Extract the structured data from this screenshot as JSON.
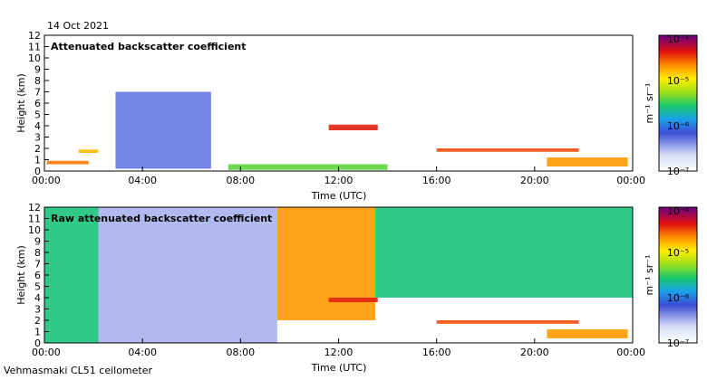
{
  "date_label": "14 Oct 2021",
  "footer_label": "Vehmasmaki CL51 ceilometer",
  "chart_data": [
    {
      "type": "heatmap",
      "title": "Attenuated backscatter coefficient",
      "xlabel": "Time (UTC)",
      "ylabel": "Height (km)",
      "xlim": [
        0,
        24
      ],
      "ylim": [
        0,
        12
      ],
      "x_ticks": [
        "00:00",
        "04:00",
        "08:00",
        "12:00",
        "16:00",
        "20:00",
        "00:00"
      ],
      "y_ticks": [
        "0",
        "1",
        "2",
        "3",
        "4",
        "5",
        "6",
        "7",
        "8",
        "9",
        "10",
        "11",
        "12"
      ],
      "colorbar": {
        "label": "m⁻¹ sr⁻¹",
        "ticks": [
          "10⁻⁴",
          "10⁻⁵",
          "10⁻⁶",
          "10⁻⁷"
        ],
        "log_range": [
          -7,
          -4
        ]
      },
      "features": [
        {
          "name": "early-cloud-layer",
          "t_start": 0.1,
          "t_end": 1.8,
          "h_bottom": 0.6,
          "h_top": 0.9,
          "log_value": -4.6
        },
        {
          "name": "low-cloud-1",
          "t_start": 1.4,
          "t_end": 2.2,
          "h_bottom": 1.6,
          "h_top": 1.9,
          "log_value": -4.8
        },
        {
          "name": "precip-column",
          "t_start": 2.9,
          "t_end": 6.8,
          "h_bottom": 0.2,
          "h_top": 7.0,
          "log_value": -6.3
        },
        {
          "name": "mid-cloud",
          "t_start": 11.6,
          "t_end": 13.6,
          "h_bottom": 3.6,
          "h_top": 4.1,
          "log_value": -4.4
        },
        {
          "name": "boundary-layer-top",
          "t_start": 7.5,
          "t_end": 14.0,
          "h_bottom": 0.1,
          "h_top": 0.6,
          "log_value": -5.4
        },
        {
          "name": "stratus-deck",
          "t_start": 16.0,
          "t_end": 21.8,
          "h_bottom": 1.7,
          "h_top": 2.0,
          "log_value": -4.5
        },
        {
          "name": "descending-layer",
          "t_start": 20.5,
          "t_end": 23.8,
          "h_bottom": 0.4,
          "h_top": 1.2,
          "log_value": -4.7
        }
      ]
    },
    {
      "type": "heatmap",
      "title": "Raw attenuated backscatter coefficient",
      "xlabel": "Time (UTC)",
      "ylabel": "Height (km)",
      "xlim": [
        0,
        24
      ],
      "ylim": [
        0,
        12
      ],
      "x_ticks": [
        "00:00",
        "04:00",
        "08:00",
        "12:00",
        "16:00",
        "20:00",
        "00:00"
      ],
      "y_ticks": [
        "0",
        "1",
        "2",
        "3",
        "4",
        "5",
        "6",
        "7",
        "8",
        "9",
        "10",
        "11",
        "12"
      ],
      "colorbar": {
        "label": "m⁻¹ sr⁻¹",
        "ticks": [
          "10⁻⁴",
          "10⁻⁵",
          "10⁻⁶",
          "10⁻⁷"
        ],
        "log_range": [
          -7,
          -4
        ]
      },
      "features": [
        {
          "name": "noise-early",
          "t_start": 0.0,
          "t_end": 2.2,
          "h_bottom": 0.0,
          "h_top": 12.0,
          "log_value": -5.6
        },
        {
          "name": "noise-quiet",
          "t_start": 2.2,
          "t_end": 9.5,
          "h_bottom": 0.0,
          "h_top": 12.0,
          "log_value": -6.5
        },
        {
          "name": "noise-bright",
          "t_start": 9.5,
          "t_end": 13.5,
          "h_bottom": 2.0,
          "h_top": 12.0,
          "log_value": -4.7
        },
        {
          "name": "noise-afternoon",
          "t_start": 13.5,
          "t_end": 24.0,
          "h_bottom": 4.0,
          "h_top": 12.0,
          "log_value": -5.6
        },
        {
          "name": "mid-cloud",
          "t_start": 11.6,
          "t_end": 13.6,
          "h_bottom": 3.6,
          "h_top": 4.0,
          "log_value": -4.4
        },
        {
          "name": "stratus-deck",
          "t_start": 16.0,
          "t_end": 21.8,
          "h_bottom": 1.7,
          "h_top": 2.0,
          "log_value": -4.5
        },
        {
          "name": "descending-layer",
          "t_start": 20.5,
          "t_end": 23.8,
          "h_bottom": 0.4,
          "h_top": 1.2,
          "log_value": -4.7
        }
      ]
    }
  ]
}
